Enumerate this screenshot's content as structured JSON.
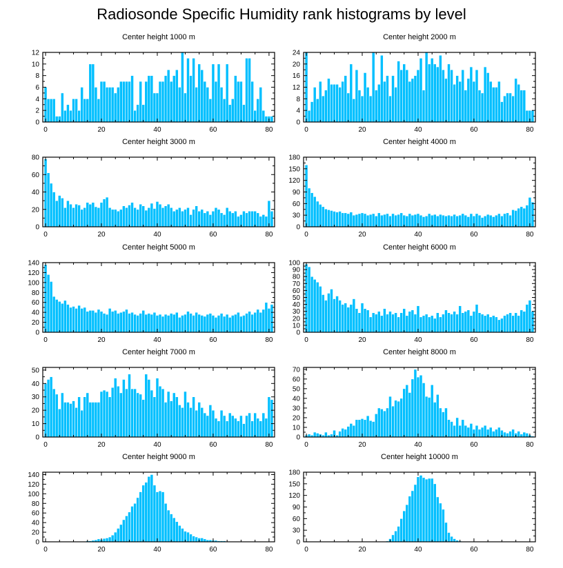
{
  "title": "Radiosonde Specific Humidity rank histograms by level",
  "colors": {
    "bar": "#00BFFF",
    "bar_edge": "#ffffff",
    "axis": "#000000"
  },
  "chart_data": [
    {
      "type": "bar",
      "title": "Center height 1000 m",
      "xlim": [
        -1,
        82
      ],
      "ylim": [
        0,
        12
      ],
      "xticks": [
        0,
        20,
        40,
        60,
        80
      ],
      "yticks": [
        0,
        2,
        4,
        6,
        8,
        10,
        12
      ],
      "values": [
        6,
        4,
        4,
        4,
        1,
        1,
        5,
        2,
        3,
        2,
        4,
        4,
        2,
        6,
        4,
        4,
        10,
        10,
        6,
        4,
        7,
        7,
        6,
        6,
        6,
        5,
        6,
        7,
        7,
        7,
        7,
        8,
        2,
        3,
        7,
        3,
        7,
        8,
        8,
        5,
        5,
        7,
        7,
        8,
        9,
        7,
        8,
        9,
        6,
        12,
        5,
        11,
        8,
        11,
        6,
        10,
        9,
        7,
        6,
        4,
        10,
        7,
        10,
        6,
        4,
        10,
        3,
        4,
        8,
        7,
        7,
        3,
        11,
        11,
        7,
        2,
        4,
        6,
        2,
        1,
        1,
        1
      ],
      "xlabel": "",
      "ylabel": ""
    },
    {
      "type": "bar",
      "title": "Center height 2000 m",
      "xlim": [
        -1,
        82
      ],
      "ylim": [
        0,
        24
      ],
      "xticks": [
        0,
        20,
        40,
        60,
        80
      ],
      "yticks": [
        0,
        4,
        8,
        12,
        16,
        20,
        24
      ],
      "values": [
        24,
        4,
        7,
        12,
        8,
        14,
        9,
        11,
        15,
        13,
        13,
        13,
        12,
        14,
        16,
        10,
        20,
        8,
        18,
        11,
        9,
        17,
        12,
        9,
        24,
        11,
        13,
        23,
        14,
        16,
        9,
        16,
        12,
        21,
        18,
        20,
        18,
        14,
        15,
        16,
        18,
        22,
        11,
        24,
        20,
        22,
        20,
        19,
        23,
        18,
        15,
        20,
        18,
        13,
        16,
        14,
        18,
        11,
        15,
        19,
        14,
        18,
        11,
        10,
        19,
        17,
        14,
        12,
        12,
        14,
        7,
        9,
        10,
        10,
        9,
        15,
        13,
        11,
        11,
        4,
        4,
        4
      ],
      "xlabel": "",
      "ylabel": ""
    },
    {
      "type": "bar",
      "title": "Center height 3000 m",
      "xlim": [
        -1,
        82
      ],
      "ylim": [
        0,
        80
      ],
      "xticks": [
        0,
        20,
        40,
        60,
        80
      ],
      "yticks": [
        0,
        20,
        40,
        60,
        80
      ],
      "values": [
        78,
        62,
        50,
        40,
        30,
        36,
        33,
        22,
        30,
        26,
        22,
        26,
        25,
        20,
        22,
        28,
        26,
        28,
        23,
        22,
        28,
        32,
        34,
        22,
        20,
        20,
        18,
        20,
        24,
        22,
        25,
        28,
        22,
        20,
        26,
        24,
        19,
        22,
        27,
        21,
        29,
        26,
        22,
        24,
        26,
        22,
        18,
        20,
        22,
        18,
        20,
        22,
        14,
        20,
        24,
        18,
        20,
        16,
        18,
        14,
        18,
        22,
        20,
        16,
        14,
        22,
        18,
        16,
        18,
        12,
        14,
        18,
        16,
        18,
        18,
        18,
        16,
        12,
        14,
        12,
        30,
        18
      ],
      "xlabel": "",
      "ylabel": ""
    },
    {
      "type": "bar",
      "title": "Center height 4000 m",
      "xlim": [
        -1,
        82
      ],
      "ylim": [
        0,
        180
      ],
      "xticks": [
        0,
        20,
        40,
        60,
        80
      ],
      "yticks": [
        0,
        30,
        60,
        90,
        120,
        150,
        180
      ],
      "values": [
        160,
        100,
        88,
        78,
        66,
        58,
        52,
        46,
        44,
        42,
        40,
        38,
        40,
        36,
        36,
        34,
        38,
        30,
        32,
        34,
        36,
        34,
        30,
        32,
        34,
        28,
        36,
        30,
        32,
        34,
        28,
        34,
        30,
        32,
        36,
        30,
        28,
        34,
        30,
        32,
        34,
        30,
        26,
        28,
        34,
        30,
        32,
        28,
        32,
        30,
        28,
        30,
        28,
        32,
        28,
        30,
        34,
        30,
        26,
        34,
        28,
        34,
        30,
        24,
        28,
        32,
        30,
        26,
        30,
        34,
        28,
        34,
        36,
        30,
        44,
        42,
        48,
        52,
        48,
        56,
        76,
        64
      ],
      "xlabel": "",
      "ylabel": ""
    },
    {
      "type": "bar",
      "title": "Center height 5000 m",
      "xlim": [
        -1,
        82
      ],
      "ylim": [
        0,
        140
      ],
      "xticks": [
        0,
        20,
        40,
        60,
        80
      ],
      "yticks": [
        0,
        20,
        40,
        60,
        80,
        100,
        120,
        140
      ],
      "values": [
        136,
        116,
        102,
        72,
        66,
        62,
        58,
        64,
        56,
        50,
        52,
        48,
        54,
        48,
        50,
        42,
        44,
        44,
        40,
        46,
        42,
        38,
        36,
        48,
        42,
        44,
        38,
        40,
        42,
        46,
        38,
        40,
        36,
        34,
        38,
        44,
        36,
        38,
        36,
        40,
        34,
        36,
        32,
        36,
        34,
        38,
        36,
        40,
        30,
        34,
        36,
        42,
        38,
        34,
        40,
        36,
        34,
        32,
        36,
        38,
        34,
        30,
        34,
        38,
        32,
        36,
        30,
        34,
        36,
        40,
        32,
        34,
        38,
        42,
        36,
        40,
        46,
        40,
        46,
        60,
        48,
        56
      ],
      "xlabel": "",
      "ylabel": ""
    },
    {
      "type": "bar",
      "title": "Center height 6000 m",
      "xlim": [
        -1,
        82
      ],
      "ylim": [
        0,
        100
      ],
      "xticks": [
        0,
        20,
        40,
        60,
        80
      ],
      "yticks": [
        0,
        10,
        20,
        30,
        40,
        50,
        60,
        70,
        80,
        90,
        100
      ],
      "values": [
        98,
        94,
        80,
        76,
        72,
        66,
        54,
        46,
        56,
        62,
        48,
        52,
        46,
        40,
        42,
        36,
        40,
        48,
        34,
        28,
        42,
        34,
        32,
        22,
        28,
        26,
        30,
        24,
        34,
        26,
        30,
        26,
        28,
        22,
        28,
        34,
        24,
        30,
        32,
        26,
        38,
        22,
        24,
        26,
        22,
        24,
        20,
        28,
        22,
        26,
        32,
        28,
        26,
        30,
        26,
        38,
        28,
        30,
        32,
        24,
        30,
        40,
        28,
        26,
        24,
        26,
        22,
        24,
        22,
        18,
        20,
        24,
        26,
        28,
        24,
        28,
        24,
        32,
        30,
        40,
        46,
        30
      ],
      "xlabel": "",
      "ylabel": ""
    },
    {
      "type": "bar",
      "title": "Center height 7000 m",
      "xlim": [
        -1,
        82
      ],
      "ylim": [
        0,
        52
      ],
      "xticks": [
        0,
        20,
        40,
        60,
        80
      ],
      "yticks": [
        0,
        10,
        20,
        30,
        40,
        50
      ],
      "values": [
        40,
        43,
        45,
        36,
        32,
        21,
        33,
        26,
        26,
        25,
        27,
        22,
        30,
        20,
        30,
        33,
        26,
        26,
        26,
        26,
        34,
        35,
        34,
        30,
        37,
        44,
        38,
        33,
        43,
        36,
        47,
        36,
        36,
        33,
        32,
        28,
        47,
        43,
        35,
        30,
        44,
        38,
        36,
        26,
        34,
        27,
        33,
        30,
        24,
        22,
        34,
        26,
        22,
        30,
        20,
        26,
        22,
        18,
        16,
        24,
        20,
        14,
        12,
        20,
        16,
        12,
        18,
        16,
        14,
        12,
        16,
        10,
        16,
        18,
        12,
        18,
        14,
        12,
        18,
        14,
        30,
        28
      ],
      "xlabel": "",
      "ylabel": ""
    },
    {
      "type": "bar",
      "title": "Center height 8000 m",
      "xlim": [
        -1,
        82
      ],
      "ylim": [
        0,
        72
      ],
      "xticks": [
        0,
        20,
        40,
        60,
        80
      ],
      "yticks": [
        0,
        10,
        20,
        30,
        40,
        50,
        60,
        70
      ],
      "values": [
        2,
        3,
        2,
        5,
        4,
        3,
        2,
        5,
        2,
        3,
        7,
        2,
        6,
        9,
        8,
        11,
        14,
        12,
        18,
        18,
        19,
        18,
        22,
        17,
        16,
        24,
        30,
        29,
        27,
        30,
        42,
        32,
        38,
        37,
        40,
        50,
        54,
        46,
        60,
        70,
        62,
        64,
        56,
        42,
        41,
        54,
        36,
        44,
        30,
        26,
        30,
        18,
        16,
        12,
        20,
        12,
        18,
        12,
        10,
        14,
        8,
        12,
        8,
        10,
        12,
        8,
        10,
        6,
        8,
        10,
        7,
        5,
        4,
        6,
        8,
        4,
        6,
        3,
        5,
        4,
        2,
        1
      ],
      "xlabel": "",
      "ylabel": ""
    },
    {
      "type": "bar",
      "title": "Center height 9000 m",
      "xlim": [
        -1,
        82
      ],
      "ylim": [
        0,
        145
      ],
      "xticks": [
        0,
        20,
        40,
        60,
        80
      ],
      "yticks": [
        0,
        20,
        40,
        60,
        80,
        100,
        120,
        140
      ],
      "values": [
        0,
        0,
        0,
        0,
        0,
        0,
        0,
        0,
        0,
        0,
        0,
        0,
        1,
        1,
        1,
        2,
        2,
        3,
        4,
        6,
        5,
        7,
        8,
        10,
        14,
        20,
        28,
        36,
        46,
        54,
        62,
        74,
        80,
        92,
        104,
        118,
        124,
        136,
        140,
        118,
        104,
        106,
        104,
        80,
        66,
        58,
        50,
        42,
        34,
        28,
        22,
        20,
        16,
        12,
        10,
        8,
        8,
        6,
        4,
        4,
        3,
        3,
        2,
        2,
        2,
        1,
        1,
        1,
        1,
        0,
        0,
        0,
        0,
        0,
        0,
        0,
        0,
        0,
        0,
        0,
        0,
        0
      ],
      "xlabel": "",
      "ylabel": ""
    },
    {
      "type": "bar",
      "title": "Center height 10000 m",
      "xlim": [
        -1,
        82
      ],
      "ylim": [
        0,
        180
      ],
      "xticks": [
        0,
        20,
        40,
        60,
        80
      ],
      "yticks": [
        0,
        30,
        60,
        90,
        120,
        150,
        180
      ],
      "values": [
        0,
        0,
        0,
        0,
        0,
        0,
        0,
        0,
        0,
        0,
        0,
        0,
        0,
        0,
        0,
        0,
        0,
        0,
        0,
        0,
        0,
        0,
        0,
        0,
        0,
        0,
        0,
        0,
        0,
        2,
        8,
        18,
        28,
        40,
        60,
        80,
        96,
        118,
        132,
        148,
        168,
        172,
        166,
        162,
        164,
        164,
        150,
        116,
        100,
        84,
        50,
        24,
        14,
        8,
        4,
        2,
        0,
        0,
        0,
        0,
        0,
        0,
        0,
        0,
        0,
        0,
        0,
        0,
        0,
        0,
        0,
        0,
        0,
        0,
        0,
        0,
        0,
        0,
        0,
        0,
        0,
        0
      ],
      "xlabel": "",
      "ylabel": ""
    }
  ]
}
